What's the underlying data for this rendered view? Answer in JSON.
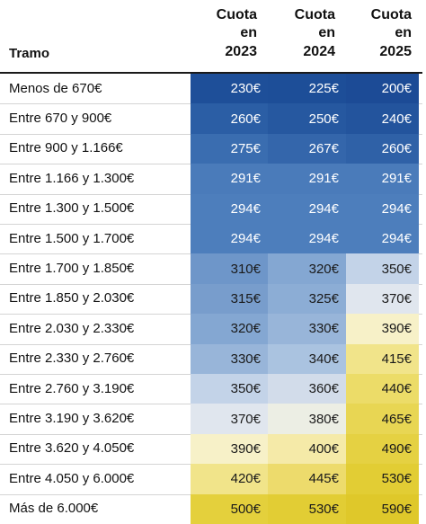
{
  "chart_data": {
    "type": "table",
    "row_header": "Tramo",
    "columns": [
      [
        "Cuota",
        "en",
        "2023"
      ],
      [
        "Cuota",
        "en",
        "2024"
      ],
      [
        "Cuota",
        "en",
        "2025"
      ]
    ],
    "rows": [
      {
        "label": "Menos de 670€",
        "values": [
          "230€",
          "225€",
          "200€"
        ],
        "colors": [
          "#1e4f99",
          "#1d4e98",
          "#1c4b96"
        ]
      },
      {
        "label": "Entre 670 y 900€",
        "values": [
          "260€",
          "250€",
          "240€"
        ],
        "colors": [
          "#2b5ea5",
          "#2658a0",
          "#23549d"
        ]
      },
      {
        "label": "Entre 900 y 1.166€",
        "values": [
          "275€",
          "267€",
          "260€"
        ],
        "colors": [
          "#3a6db0",
          "#3466ab",
          "#2f61a7"
        ]
      },
      {
        "label": "Entre 1.166 y 1.300€",
        "values": [
          "291€",
          "291€",
          "291€"
        ],
        "colors": [
          "#4a7bba",
          "#4a7bba",
          "#4a7bba"
        ]
      },
      {
        "label": "Entre 1.300 y 1.500€",
        "values": [
          "294€",
          "294€",
          "294€"
        ],
        "colors": [
          "#4d7ebc",
          "#4d7ebc",
          "#4d7ebc"
        ]
      },
      {
        "label": "Entre 1.500 y 1.700€",
        "values": [
          "294€",
          "294€",
          "294€"
        ],
        "colors": [
          "#4d7ebc",
          "#4d7ebc",
          "#4d7ebc"
        ]
      },
      {
        "label": "Entre 1.700 y 1.850€",
        "values": [
          "310€",
          "320€",
          "350€"
        ],
        "colors": [
          "#6e96c9",
          "#84a7d2",
          "#c3d3e8"
        ]
      },
      {
        "label": "Entre 1.850 y 2.030€",
        "values": [
          "315€",
          "325€",
          "370€"
        ],
        "colors": [
          "#789dcc",
          "#8cadd5",
          "#e0e6ee"
        ]
      },
      {
        "label": "Entre 2.030 y 2.330€",
        "values": [
          "320€",
          "330€",
          "390€"
        ],
        "colors": [
          "#84a7d2",
          "#98b5d9",
          "#f7f1c8"
        ]
      },
      {
        "label": "Entre 2.330 y 2.760€",
        "values": [
          "330€",
          "340€",
          "415€"
        ],
        "colors": [
          "#98b5d9",
          "#aac3e0",
          "#f1e48a"
        ]
      },
      {
        "label": "Entre 2.760 y 3.190€",
        "values": [
          "350€",
          "360€",
          "440€"
        ],
        "colors": [
          "#c3d3e8",
          "#d2dcea",
          "#ecdc68"
        ]
      },
      {
        "label": "Entre 3.190 y 3.620€",
        "values": [
          "370€",
          "380€",
          "465€"
        ],
        "colors": [
          "#e0e6ee",
          "#eceee4",
          "#e8d653"
        ]
      },
      {
        "label": "Entre 3.620 y 4.050€",
        "values": [
          "390€",
          "400€",
          "490€"
        ],
        "colors": [
          "#f7f1c8",
          "#f5eaa8",
          "#e5d142"
        ]
      },
      {
        "label": "Entre 4.050 y 6.000€",
        "values": [
          "420€",
          "445€",
          "530€"
        ],
        "colors": [
          "#f1e48a",
          "#eddb6c",
          "#e2cd34"
        ]
      },
      {
        "label": "Más de 6.000€",
        "values": [
          "500€",
          "530€",
          "590€"
        ],
        "colors": [
          "#e4d03c",
          "#e2cd34",
          "#dfc82a"
        ]
      }
    ],
    "text_colors": {
      "dark_cell": "#ffffff",
      "light_cell": "#1a1a1a"
    }
  }
}
